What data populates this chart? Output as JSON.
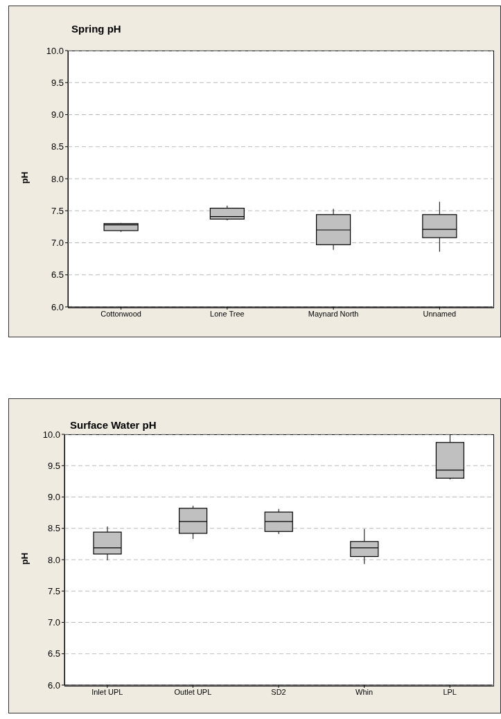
{
  "chart_data": [
    {
      "type": "box",
      "title": "Spring pH",
      "ylabel": "pH",
      "categories": [
        "Cottonwood",
        "Lone Tree",
        "Maynard North",
        "Unnamed"
      ],
      "color": "#c0c0c0",
      "grid": "y",
      "ylim": [
        6,
        10
      ],
      "yticks": [
        {
          "value": 6,
          "label": "6.0"
        },
        {
          "value": 6.5,
          "label": "6.5"
        },
        {
          "value": 7,
          "label": "7.0"
        },
        {
          "value": 7.5,
          "label": "7.5"
        },
        {
          "value": 8,
          "label": "8.0"
        },
        {
          "value": 8.5,
          "label": "8.5"
        },
        {
          "value": 9,
          "label": "9.0"
        },
        {
          "value": 9.5,
          "label": "9.5"
        },
        {
          "value": 10,
          "label": "10.0"
        }
      ],
      "boxes": [
        {
          "low": 7.17,
          "q1": 7.19,
          "median": 7.28,
          "q3": 7.3,
          "high": 7.31
        },
        {
          "low": 7.35,
          "q1": 7.37,
          "median": 7.41,
          "q3": 7.54,
          "high": 7.58
        },
        {
          "low": 6.89,
          "q1": 6.97,
          "median": 7.2,
          "q3": 7.44,
          "high": 7.53
        },
        {
          "low": 6.86,
          "q1": 7.08,
          "median": 7.21,
          "q3": 7.44,
          "high": 7.64
        }
      ]
    },
    {
      "type": "box",
      "title": "Surface Water pH",
      "ylabel": "pH",
      "categories": [
        "Inlet UPL",
        "Outlet UPL",
        "SD2",
        "Whin",
        "LPL"
      ],
      "color": "#c0c0c0",
      "grid": "y",
      "ylim": [
        6,
        10
      ],
      "yticks": [
        {
          "value": 6,
          "label": "6.0"
        },
        {
          "value": 6.5,
          "label": "6.5"
        },
        {
          "value": 7,
          "label": "7.0"
        },
        {
          "value": 7.5,
          "label": "7.5"
        },
        {
          "value": 8,
          "label": "8.0"
        },
        {
          "value": 8.5,
          "label": "8.5"
        },
        {
          "value": 9,
          "label": "9.0"
        },
        {
          "value": 9.5,
          "label": "9.5"
        },
        {
          "value": 10,
          "label": "10.0"
        }
      ],
      "boxes": [
        {
          "low": 7.99,
          "q1": 8.09,
          "median": 8.19,
          "q3": 8.44,
          "high": 8.53
        },
        {
          "low": 8.33,
          "q1": 8.42,
          "median": 8.61,
          "q3": 8.82,
          "high": 8.86
        },
        {
          "low": 8.41,
          "q1": 8.45,
          "median": 8.61,
          "q3": 8.76,
          "high": 8.81
        },
        {
          "low": 7.93,
          "q1": 8.05,
          "median": 8.19,
          "q3": 8.29,
          "high": 8.49
        },
        {
          "low": 9.28,
          "q1": 9.3,
          "median": 9.43,
          "q3": 9.87,
          "high": 10
        }
      ]
    }
  ]
}
